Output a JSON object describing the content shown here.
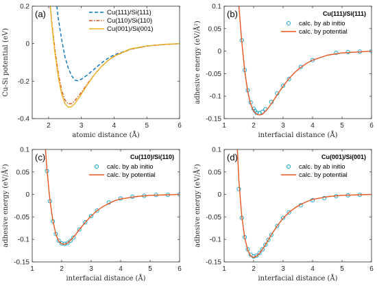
{
  "chart_data": [
    {
      "id": "a",
      "type": "line",
      "panel_label": "(a)",
      "xlabel": "atomic distance (Å)",
      "ylabel": "Cu-Si potential (eV)",
      "xlim": [
        1.5,
        6
      ],
      "ylim": [
        -0.4,
        0.2
      ],
      "xticks": [
        2,
        3,
        4,
        5,
        6
      ],
      "yticks": [
        -0.4,
        -0.2,
        0,
        0.2
      ],
      "ytick_labels": [
        "-0.4",
        "-0.2",
        "0",
        "0.2"
      ],
      "legend_position": "top-right",
      "series": [
        {
          "name": "Cu(111)/Si(111)",
          "color": "#0072BD",
          "dash": "dashed",
          "x": [
            2.25,
            2.3,
            2.4,
            2.5,
            2.6,
            2.7,
            2.8,
            2.9,
            3.0,
            3.2,
            3.4,
            3.6,
            3.8,
            4.0,
            4.5,
            5.0,
            5.5,
            6.0
          ],
          "y": [
            0.2,
            0.13,
            0.02,
            -0.07,
            -0.13,
            -0.17,
            -0.195,
            -0.198,
            -0.19,
            -0.165,
            -0.135,
            -0.105,
            -0.08,
            -0.06,
            -0.03,
            -0.013,
            -0.005,
            0.0
          ]
        },
        {
          "name": "Cu(110)/Si(110)",
          "color": "#D95319",
          "dash": "dashdot",
          "x": [
            2.05,
            2.1,
            2.2,
            2.3,
            2.4,
            2.5,
            2.6,
            2.7,
            2.8,
            3.0,
            3.2,
            3.4,
            3.6,
            3.8,
            4.0,
            4.5,
            5.0,
            5.5,
            6.0
          ],
          "y": [
            0.2,
            0.11,
            -0.04,
            -0.16,
            -0.25,
            -0.3,
            -0.322,
            -0.32,
            -0.305,
            -0.26,
            -0.21,
            -0.165,
            -0.125,
            -0.092,
            -0.068,
            -0.03,
            -0.013,
            -0.005,
            0.0
          ]
        },
        {
          "name": "Cu(001)/Si(001)",
          "color": "#EDB120",
          "dash": "solid",
          "x": [
            2.05,
            2.1,
            2.2,
            2.3,
            2.4,
            2.5,
            2.6,
            2.7,
            2.8,
            3.0,
            3.2,
            3.4,
            3.6,
            3.8,
            4.0,
            4.5,
            5.0,
            5.5,
            6.0
          ],
          "y": [
            0.2,
            0.1,
            -0.06,
            -0.18,
            -0.27,
            -0.32,
            -0.34,
            -0.336,
            -0.32,
            -0.27,
            -0.215,
            -0.165,
            -0.125,
            -0.092,
            -0.066,
            -0.028,
            -0.012,
            -0.004,
            0.0
          ]
        }
      ]
    },
    {
      "id": "b",
      "type": "scatter",
      "panel_label": "(b)",
      "title": "Cu(111)/Si(111)",
      "xlabel": "interfacial distance (Å)",
      "ylabel": "adhesive energy (eV/Å²)",
      "xlim": [
        1,
        6
      ],
      "ylim": [
        -0.15,
        0.1
      ],
      "xticks": [
        1,
        2,
        3,
        4,
        5,
        6
      ],
      "yticks": [
        -0.15,
        -0.1,
        -0.05,
        0,
        0.05,
        0.1
      ],
      "ytick_labels": [
        "-0.15",
        "-0.1",
        "-0.05",
        "0",
        "0.05",
        "0.1"
      ],
      "legend_position": "top-right",
      "series": [
        {
          "name": "calc. by ab initio",
          "kind": "markers",
          "color": "#1fa8c9",
          "x": [
            1.6,
            1.7,
            1.8,
            1.9,
            2.0,
            2.05,
            2.1,
            2.2,
            2.3,
            2.4,
            2.6,
            2.8,
            3.0,
            3.2,
            3.6,
            4.0,
            4.8,
            5.2,
            5.6,
            6.0
          ],
          "y": [
            0.024,
            -0.042,
            -0.087,
            -0.114,
            -0.128,
            -0.133,
            -0.137,
            -0.138,
            -0.135,
            -0.129,
            -0.113,
            -0.094,
            -0.077,
            -0.062,
            -0.035,
            -0.02,
            -0.004,
            -0.002,
            -0.001,
            0.0
          ]
        },
        {
          "name": "calc. by potential",
          "kind": "line",
          "color": "#e8541e",
          "x": [
            1.5,
            1.55,
            1.6,
            1.7,
            1.8,
            1.9,
            2.0,
            2.1,
            2.2,
            2.3,
            2.4,
            2.5,
            2.6,
            2.8,
            3.0,
            3.2,
            3.4,
            3.6,
            3.8,
            4.0,
            4.5,
            5.0,
            5.5,
            6.0
          ],
          "y": [
            0.1,
            0.06,
            0.02,
            -0.045,
            -0.09,
            -0.118,
            -0.133,
            -0.14,
            -0.142,
            -0.14,
            -0.134,
            -0.126,
            -0.117,
            -0.097,
            -0.078,
            -0.061,
            -0.047,
            -0.036,
            -0.027,
            -0.02,
            -0.009,
            -0.004,
            -0.002,
            0.0
          ]
        }
      ]
    },
    {
      "id": "c",
      "type": "scatter",
      "panel_label": "(c)",
      "title": "Cu(110)/Si(110)",
      "xlabel": "interfacial distance (Å)",
      "ylabel": "adhesive energy (eV/Å²)",
      "xlim": [
        1,
        6
      ],
      "ylim": [
        -0.15,
        0.1
      ],
      "xticks": [
        1,
        2,
        3,
        4,
        5,
        6
      ],
      "yticks": [
        -0.15,
        -0.1,
        -0.05,
        0,
        0.05,
        0.1
      ],
      "ytick_labels": [
        "-0.15",
        "-0.1",
        "-0.05",
        "0",
        "0.05",
        "0.1"
      ],
      "legend_position": "top-right",
      "series": [
        {
          "name": "calc. by ab initio",
          "kind": "markers",
          "color": "#1fa8c9",
          "x": [
            1.5,
            1.6,
            1.7,
            1.8,
            1.9,
            2.0,
            2.1,
            2.2,
            2.3,
            2.4,
            2.6,
            2.8,
            3.0,
            3.2,
            3.6,
            4.0,
            4.4,
            4.8,
            5.2,
            5.6,
            6.0
          ],
          "y": [
            0.052,
            -0.015,
            -0.06,
            -0.088,
            -0.103,
            -0.109,
            -0.11,
            -0.108,
            -0.103,
            -0.096,
            -0.078,
            -0.062,
            -0.048,
            -0.036,
            -0.018,
            -0.009,
            -0.005,
            -0.003,
            -0.001,
            -0.001,
            0.0
          ]
        },
        {
          "name": "calc. by potential",
          "kind": "line",
          "color": "#e8541e",
          "x": [
            1.45,
            1.5,
            1.6,
            1.7,
            1.8,
            1.9,
            2.0,
            2.1,
            2.2,
            2.3,
            2.4,
            2.5,
            2.6,
            2.8,
            3.0,
            3.2,
            3.4,
            3.6,
            3.8,
            4.0,
            4.5,
            5.0,
            5.5,
            6.0
          ],
          "y": [
            0.1,
            0.055,
            -0.012,
            -0.058,
            -0.088,
            -0.104,
            -0.11,
            -0.111,
            -0.108,
            -0.102,
            -0.095,
            -0.087,
            -0.078,
            -0.062,
            -0.048,
            -0.036,
            -0.027,
            -0.02,
            -0.014,
            -0.01,
            -0.005,
            -0.002,
            -0.001,
            0.0
          ]
        }
      ]
    },
    {
      "id": "d",
      "type": "scatter",
      "panel_label": "(d)",
      "title": "Cu(001)/Si(001)",
      "xlabel": "interfacial distance (Å)",
      "ylabel": "adhesive energy (eV/Å²)",
      "xlim": [
        1,
        6
      ],
      "ylim": [
        -0.15,
        0.1
      ],
      "xticks": [
        1,
        2,
        3,
        4,
        5,
        6
      ],
      "yticks": [
        -0.15,
        -0.1,
        -0.05,
        0,
        0.05,
        0.1
      ],
      "ytick_labels": [
        "-0.15",
        "-0.1",
        "-0.05",
        "0",
        "0.05",
        "0.1"
      ],
      "legend_position": "top-right",
      "series": [
        {
          "name": "calc. by ab initio",
          "kind": "markers",
          "color": "#1fa8c9",
          "x": [
            1.5,
            1.6,
            1.7,
            1.8,
            1.9,
            2.0,
            2.1,
            2.2,
            2.3,
            2.4,
            2.5,
            2.6,
            2.8,
            3.0,
            3.2,
            3.6,
            4.0,
            4.4,
            4.8,
            5.2,
            5.6
          ],
          "y": [
            0.012,
            -0.052,
            -0.095,
            -0.122,
            -0.134,
            -0.138,
            -0.136,
            -0.13,
            -0.122,
            -0.112,
            -0.101,
            -0.09,
            -0.07,
            -0.052,
            -0.04,
            -0.024,
            -0.013,
            -0.008,
            -0.004,
            -0.002,
            -0.001
          ]
        },
        {
          "name": "calc. by potential",
          "kind": "line",
          "color": "#e8541e",
          "x": [
            1.45,
            1.5,
            1.6,
            1.7,
            1.8,
            1.9,
            2.0,
            2.1,
            2.2,
            2.3,
            2.4,
            2.5,
            2.6,
            2.8,
            3.0,
            3.2,
            3.4,
            3.6,
            3.8,
            4.0,
            4.5,
            5.0,
            5.5,
            6.0
          ],
          "y": [
            0.1,
            0.03,
            -0.05,
            -0.097,
            -0.124,
            -0.137,
            -0.14,
            -0.137,
            -0.131,
            -0.122,
            -0.112,
            -0.101,
            -0.09,
            -0.07,
            -0.053,
            -0.04,
            -0.03,
            -0.022,
            -0.016,
            -0.011,
            -0.005,
            -0.002,
            -0.001,
            0.0
          ]
        }
      ]
    }
  ]
}
